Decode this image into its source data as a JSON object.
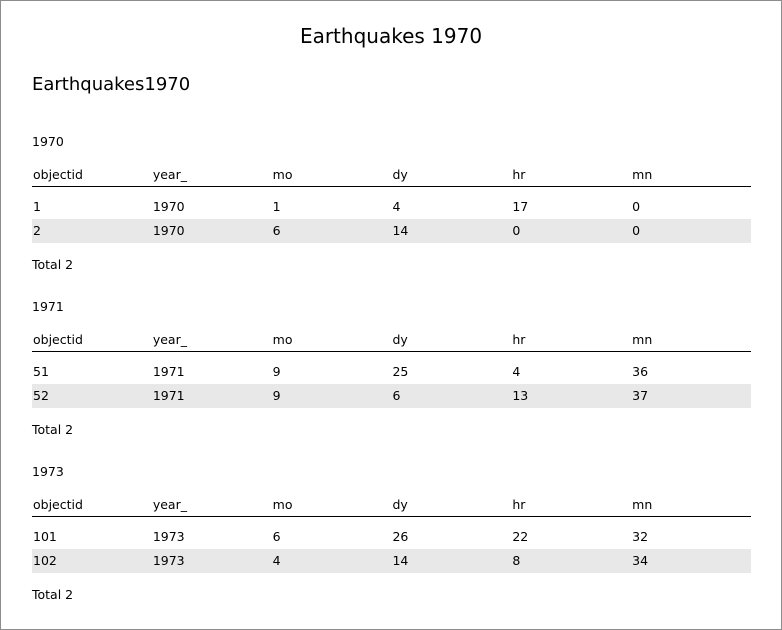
{
  "report_title": "Earthquakes 1970",
  "layer_title": "Earthquakes1970",
  "columns": [
    "objectid",
    "year_",
    "mo",
    "dy",
    "hr",
    "mn"
  ],
  "groups": [
    {
      "label": "1970",
      "rows": [
        [
          "1",
          "1970",
          "1",
          "4",
          "17",
          "0"
        ],
        [
          "2",
          "1970",
          "6",
          "14",
          "0",
          "0"
        ]
      ],
      "total": "Total 2"
    },
    {
      "label": "1971",
      "rows": [
        [
          "51",
          "1971",
          "9",
          "25",
          "4",
          "36"
        ],
        [
          "52",
          "1971",
          "9",
          "6",
          "13",
          "37"
        ]
      ],
      "total": "Total 2"
    },
    {
      "label": "1973",
      "rows": [
        [
          "101",
          "1973",
          "6",
          "26",
          "22",
          "32"
        ],
        [
          "102",
          "1973",
          "4",
          "14",
          "8",
          "34"
        ]
      ],
      "total": "Total 2"
    }
  ],
  "colors": {
    "border": "#8c8c8c",
    "alt_row": "#e8e8e8",
    "rule": "#000000"
  }
}
